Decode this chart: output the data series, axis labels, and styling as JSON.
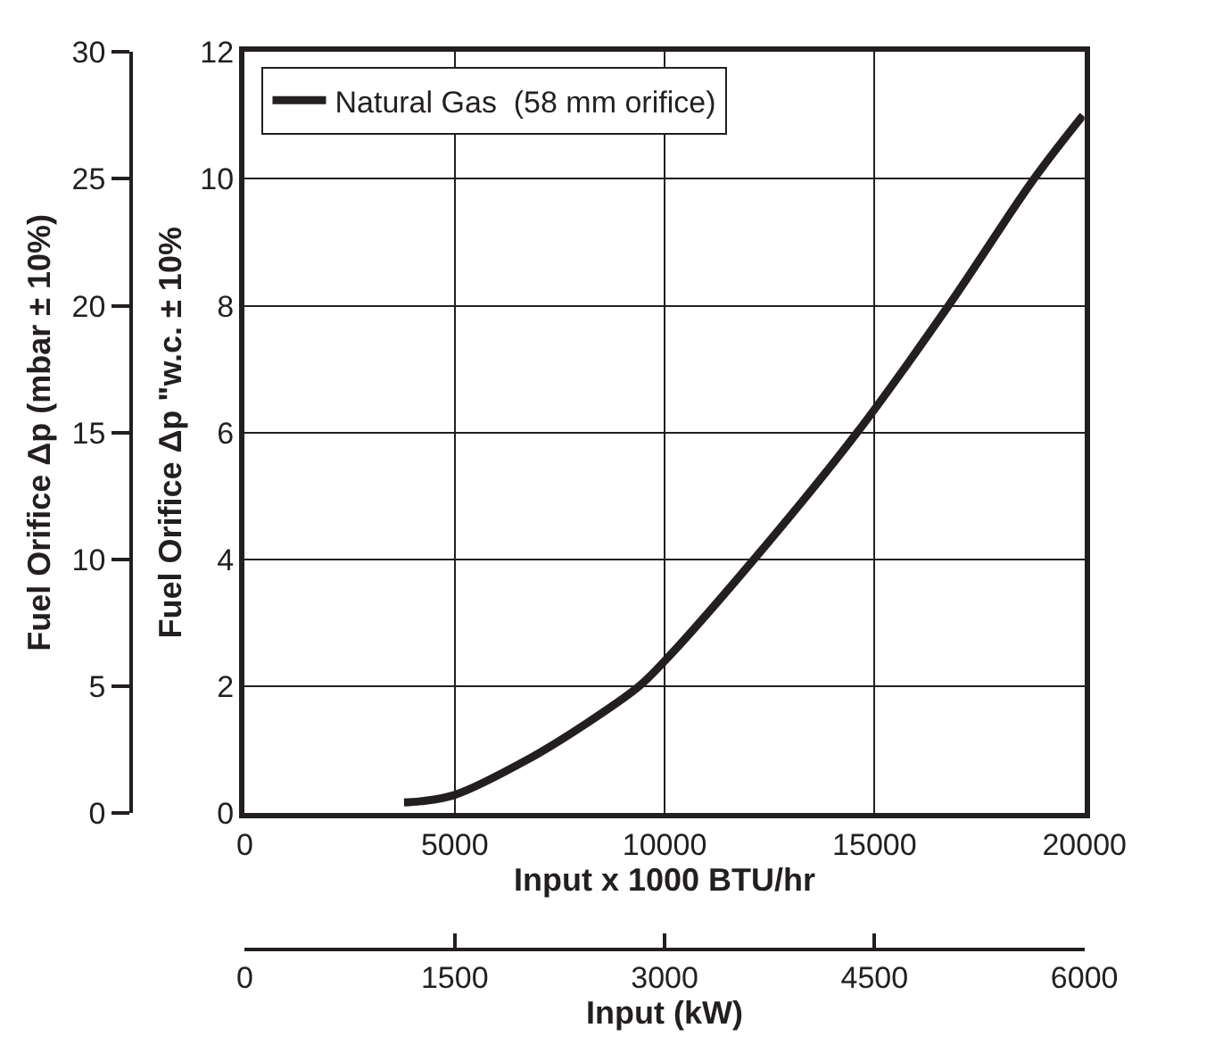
{
  "chart_data": {
    "type": "line",
    "xlabel": "Input x 1000 BTU/hr",
    "ylabel": "Fuel Orifice Δp \"w.c. ± 10%",
    "y2label": "Fuel Orifice Δp (mbar ± 10%)",
    "x2label": "Input (kW)",
    "series": [
      {
        "name": "Natural Gas  (58 mm orifice)",
        "color": "#231f20",
        "x": [
          3794,
          4187,
          5000,
          6716,
          8121,
          9385,
          10000,
          12125,
          14584,
          16762,
          18799,
          19965
        ],
        "values": [
          0.17,
          0.19,
          0.29,
          0.84,
          1.41,
          2.0,
          2.4,
          4.0,
          6.0,
          8.0,
          10.0,
          11.0
        ]
      }
    ],
    "xlim": [
      0,
      20000
    ],
    "xticks": [
      0,
      5000,
      10000,
      15000,
      20000
    ],
    "ylim": [
      0,
      12
    ],
    "yticks": [
      0,
      2,
      4,
      6,
      8,
      10,
      12
    ],
    "y2lim": [
      0,
      30
    ],
    "y2ticks": [
      0,
      5,
      10,
      15,
      20,
      25,
      30
    ],
    "x2lim": [
      0,
      6000
    ],
    "x2ticks": [
      0,
      1500,
      3000,
      4500,
      6000
    ],
    "grid": true,
    "legend": "top left",
    "marker": "none",
    "line_style": "solid"
  }
}
